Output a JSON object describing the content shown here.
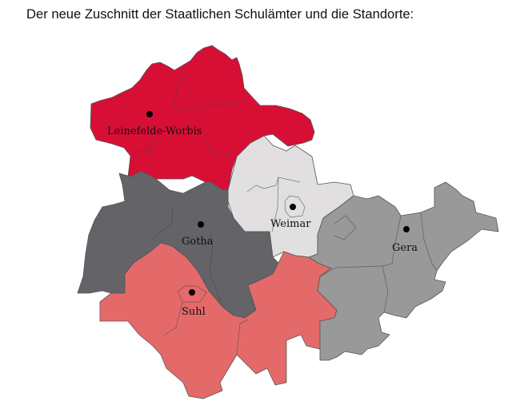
{
  "title": "Der neue Zuschnitt der Staatlichen Schulämter und die Standorte:",
  "regions": [
    {
      "name": "Leinefelde-Worbis",
      "color": "#d80f35"
    },
    {
      "name": "Gotha",
      "color": "#646367"
    },
    {
      "name": "Weimar",
      "color": "#e1dfe0"
    },
    {
      "name": "Gera",
      "color": "#999999"
    },
    {
      "name": "Suhl",
      "color": "#e46a6a"
    }
  ]
}
